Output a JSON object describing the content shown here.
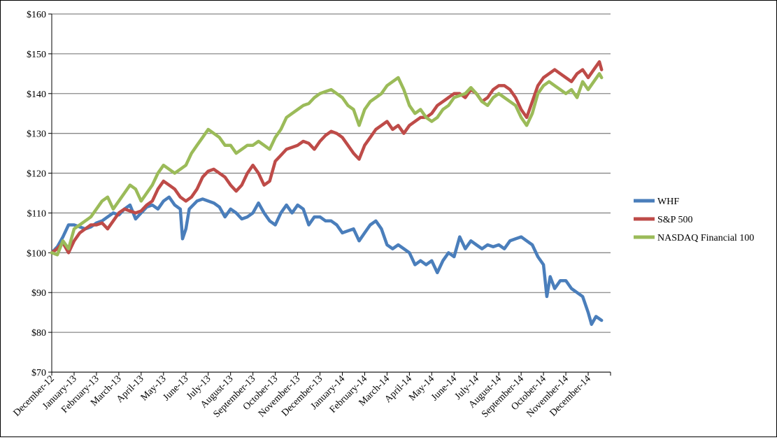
{
  "chart_data": {
    "type": "line",
    "title": "",
    "xlabel": "",
    "ylabel": "",
    "ylim": [
      70,
      160
    ],
    "y_ticks": [
      70,
      80,
      90,
      100,
      110,
      120,
      130,
      140,
      150,
      160
    ],
    "y_tick_labels": [
      "$70",
      "$80",
      "$90",
      "$100",
      "$110",
      "$120",
      "$130",
      "$140",
      "$150",
      "$160"
    ],
    "categories": [
      "December-12",
      "January-13",
      "February-13",
      "March-13",
      "April-13",
      "May-13",
      "June-13",
      "July-13",
      "August-13",
      "September-13",
      "October-13",
      "November-13",
      "December-13",
      "January-14",
      "February-14",
      "March-14",
      "April-14",
      "May-14",
      "June-14",
      "July-14",
      "August-14",
      "September-14",
      "October-14",
      "November-14",
      "December-14"
    ],
    "grid": "horizontal",
    "legend_position": "right",
    "series": [
      {
        "name": "WHF",
        "color": "#4a7ebb",
        "values": [
          [
            0,
            100
          ],
          [
            0.25,
            101.5
          ],
          [
            0.5,
            104
          ],
          [
            0.75,
            107
          ],
          [
            1.0,
            107
          ],
          [
            1.25,
            106.5
          ],
          [
            1.5,
            106
          ],
          [
            1.75,
            106.5
          ],
          [
            2.0,
            107.5
          ],
          [
            2.25,
            108
          ],
          [
            2.5,
            109
          ],
          [
            2.75,
            110
          ],
          [
            3.0,
            109.5
          ],
          [
            3.25,
            111
          ],
          [
            3.5,
            112
          ],
          [
            3.75,
            108.5
          ],
          [
            4.0,
            110
          ],
          [
            4.25,
            111.5
          ],
          [
            4.5,
            112
          ],
          [
            4.75,
            111
          ],
          [
            5.0,
            113
          ],
          [
            5.25,
            114
          ],
          [
            5.5,
            112
          ],
          [
            5.75,
            111
          ],
          [
            5.85,
            103.5
          ],
          [
            6.0,
            106
          ],
          [
            6.15,
            111
          ],
          [
            6.5,
            113
          ],
          [
            6.75,
            113.5
          ],
          [
            7.0,
            113
          ],
          [
            7.25,
            112.5
          ],
          [
            7.5,
            111.5
          ],
          [
            7.75,
            109
          ],
          [
            8.0,
            111
          ],
          [
            8.25,
            110
          ],
          [
            8.5,
            108.5
          ],
          [
            8.75,
            109
          ],
          [
            9.0,
            110
          ],
          [
            9.25,
            112.5
          ],
          [
            9.5,
            110
          ],
          [
            9.75,
            108
          ],
          [
            10.0,
            107
          ],
          [
            10.25,
            110
          ],
          [
            10.5,
            112
          ],
          [
            10.75,
            110
          ],
          [
            11.0,
            112
          ],
          [
            11.25,
            111
          ],
          [
            11.5,
            107
          ],
          [
            11.75,
            109
          ],
          [
            12.0,
            109
          ],
          [
            12.25,
            108
          ],
          [
            12.5,
            108
          ],
          [
            12.75,
            107
          ],
          [
            13.0,
            105
          ],
          [
            13.25,
            105.5
          ],
          [
            13.5,
            106
          ],
          [
            13.75,
            103
          ],
          [
            14.0,
            105
          ],
          [
            14.25,
            107
          ],
          [
            14.5,
            108
          ],
          [
            14.75,
            106
          ],
          [
            15.0,
            102
          ],
          [
            15.25,
            101
          ],
          [
            15.5,
            102
          ],
          [
            15.75,
            101
          ],
          [
            16.0,
            100
          ],
          [
            16.25,
            97
          ],
          [
            16.5,
            98
          ],
          [
            16.75,
            97
          ],
          [
            17.0,
            98
          ],
          [
            17.25,
            95
          ],
          [
            17.5,
            98
          ],
          [
            17.75,
            100
          ],
          [
            18.0,
            99
          ],
          [
            18.25,
            104
          ],
          [
            18.5,
            101
          ],
          [
            18.75,
            103
          ],
          [
            19.0,
            102
          ],
          [
            19.25,
            101
          ],
          [
            19.5,
            102
          ],
          [
            19.75,
            101.5
          ],
          [
            20.0,
            102
          ],
          [
            20.25,
            101
          ],
          [
            20.5,
            103
          ],
          [
            20.75,
            103.5
          ],
          [
            21.0,
            104
          ],
          [
            21.25,
            103
          ],
          [
            21.5,
            102
          ],
          [
            21.75,
            99
          ],
          [
            22.0,
            97
          ],
          [
            22.15,
            89
          ],
          [
            22.3,
            94
          ],
          [
            22.5,
            91
          ],
          [
            22.75,
            93
          ],
          [
            23.0,
            93
          ],
          [
            23.25,
            91
          ],
          [
            23.5,
            90
          ],
          [
            23.75,
            89
          ],
          [
            24.0,
            85
          ],
          [
            24.15,
            82
          ],
          [
            24.35,
            84
          ],
          [
            24.6,
            83
          ]
        ]
      },
      {
        "name": "S&P 500",
        "color": "#be4b48",
        "values": [
          [
            0,
            100
          ],
          [
            0.25,
            101
          ],
          [
            0.5,
            102.5
          ],
          [
            0.75,
            100
          ],
          [
            1.0,
            103
          ],
          [
            1.25,
            105
          ],
          [
            1.5,
            106
          ],
          [
            1.75,
            107
          ],
          [
            2.0,
            107
          ],
          [
            2.25,
            107.5
          ],
          [
            2.5,
            106
          ],
          [
            2.75,
            108
          ],
          [
            3.0,
            110
          ],
          [
            3.25,
            111
          ],
          [
            3.5,
            110.5
          ],
          [
            3.75,
            110
          ],
          [
            4.0,
            110.5
          ],
          [
            4.25,
            112
          ],
          [
            4.5,
            113
          ],
          [
            4.75,
            116
          ],
          [
            5.0,
            118
          ],
          [
            5.25,
            117
          ],
          [
            5.5,
            116
          ],
          [
            5.75,
            114
          ],
          [
            6.0,
            113
          ],
          [
            6.25,
            114
          ],
          [
            6.5,
            116
          ],
          [
            6.75,
            119
          ],
          [
            7.0,
            120.5
          ],
          [
            7.25,
            121
          ],
          [
            7.5,
            120
          ],
          [
            7.75,
            119
          ],
          [
            8.0,
            117
          ],
          [
            8.25,
            115.5
          ],
          [
            8.5,
            117
          ],
          [
            8.75,
            120
          ],
          [
            9.0,
            122
          ],
          [
            9.25,
            120
          ],
          [
            9.5,
            117
          ],
          [
            9.75,
            118
          ],
          [
            10.0,
            123
          ],
          [
            10.25,
            124.5
          ],
          [
            10.5,
            126
          ],
          [
            10.75,
            126.5
          ],
          [
            11.0,
            127
          ],
          [
            11.25,
            128
          ],
          [
            11.5,
            127.5
          ],
          [
            11.75,
            126
          ],
          [
            12.0,
            128
          ],
          [
            12.25,
            129.5
          ],
          [
            12.5,
            130.5
          ],
          [
            12.75,
            130
          ],
          [
            13.0,
            129
          ],
          [
            13.25,
            127
          ],
          [
            13.5,
            125
          ],
          [
            13.75,
            123.5
          ],
          [
            14.0,
            127
          ],
          [
            14.25,
            129
          ],
          [
            14.5,
            131
          ],
          [
            14.75,
            132
          ],
          [
            15.0,
            133
          ],
          [
            15.25,
            131
          ],
          [
            15.5,
            132
          ],
          [
            15.75,
            130
          ],
          [
            16.0,
            132
          ],
          [
            16.25,
            133
          ],
          [
            16.5,
            134
          ],
          [
            16.75,
            134
          ],
          [
            17.0,
            135
          ],
          [
            17.25,
            137
          ],
          [
            17.5,
            138
          ],
          [
            17.75,
            139
          ],
          [
            18.0,
            140
          ],
          [
            18.25,
            140
          ],
          [
            18.5,
            139
          ],
          [
            18.75,
            141
          ],
          [
            19.0,
            140
          ],
          [
            19.25,
            138
          ],
          [
            19.5,
            139
          ],
          [
            19.75,
            141
          ],
          [
            20.0,
            142
          ],
          [
            20.25,
            142
          ],
          [
            20.5,
            141
          ],
          [
            20.75,
            139
          ],
          [
            21.0,
            136
          ],
          [
            21.25,
            134
          ],
          [
            21.5,
            138
          ],
          [
            21.75,
            142
          ],
          [
            22.0,
            144
          ],
          [
            22.25,
            145
          ],
          [
            22.5,
            146
          ],
          [
            22.75,
            145
          ],
          [
            23.0,
            144
          ],
          [
            23.25,
            143
          ],
          [
            23.5,
            145
          ],
          [
            23.75,
            146
          ],
          [
            24.0,
            144
          ],
          [
            24.25,
            146
          ],
          [
            24.5,
            148
          ],
          [
            24.6,
            146
          ]
        ]
      },
      {
        "name": "NASDAQ Financial 100",
        "color": "#9bbb59",
        "values": [
          [
            0,
            100
          ],
          [
            0.25,
            99.5
          ],
          [
            0.5,
            103
          ],
          [
            0.75,
            101
          ],
          [
            1.0,
            106
          ],
          [
            1.25,
            107
          ],
          [
            1.5,
            108
          ],
          [
            1.75,
            109
          ],
          [
            2.0,
            111
          ],
          [
            2.25,
            113
          ],
          [
            2.5,
            114
          ],
          [
            2.75,
            111
          ],
          [
            3.0,
            113
          ],
          [
            3.25,
            115
          ],
          [
            3.5,
            117
          ],
          [
            3.75,
            116
          ],
          [
            4.0,
            113
          ],
          [
            4.25,
            115
          ],
          [
            4.5,
            117
          ],
          [
            4.75,
            120
          ],
          [
            5.0,
            122
          ],
          [
            5.25,
            121
          ],
          [
            5.5,
            120
          ],
          [
            5.75,
            121
          ],
          [
            6.0,
            122
          ],
          [
            6.25,
            125
          ],
          [
            6.5,
            127
          ],
          [
            6.75,
            129
          ],
          [
            7.0,
            131
          ],
          [
            7.25,
            130
          ],
          [
            7.5,
            129
          ],
          [
            7.75,
            127
          ],
          [
            8.0,
            127
          ],
          [
            8.25,
            125
          ],
          [
            8.5,
            126
          ],
          [
            8.75,
            127
          ],
          [
            9.0,
            127
          ],
          [
            9.25,
            128
          ],
          [
            9.5,
            127
          ],
          [
            9.75,
            126
          ],
          [
            10.0,
            129
          ],
          [
            10.25,
            131
          ],
          [
            10.5,
            134
          ],
          [
            10.75,
            135
          ],
          [
            11.0,
            136
          ],
          [
            11.25,
            137
          ],
          [
            11.5,
            137.5
          ],
          [
            11.75,
            139
          ],
          [
            12.0,
            140
          ],
          [
            12.25,
            140.5
          ],
          [
            12.5,
            141
          ],
          [
            12.75,
            140
          ],
          [
            13.0,
            139
          ],
          [
            13.25,
            137
          ],
          [
            13.5,
            136
          ],
          [
            13.75,
            132
          ],
          [
            14.0,
            136
          ],
          [
            14.25,
            138
          ],
          [
            14.5,
            139
          ],
          [
            14.75,
            140
          ],
          [
            15.0,
            142
          ],
          [
            15.25,
            143
          ],
          [
            15.5,
            144
          ],
          [
            15.75,
            141
          ],
          [
            16.0,
            137
          ],
          [
            16.25,
            135
          ],
          [
            16.5,
            136
          ],
          [
            16.75,
            134
          ],
          [
            17.0,
            133
          ],
          [
            17.25,
            134
          ],
          [
            17.5,
            136
          ],
          [
            17.75,
            137
          ],
          [
            18.0,
            139
          ],
          [
            18.25,
            139.5
          ],
          [
            18.5,
            140
          ],
          [
            18.75,
            141.5
          ],
          [
            19.0,
            140
          ],
          [
            19.25,
            138
          ],
          [
            19.5,
            137
          ],
          [
            19.75,
            139
          ],
          [
            20.0,
            140
          ],
          [
            20.25,
            139
          ],
          [
            20.5,
            138
          ],
          [
            20.75,
            137
          ],
          [
            21.0,
            134
          ],
          [
            21.25,
            132
          ],
          [
            21.5,
            135
          ],
          [
            21.75,
            140
          ],
          [
            22.0,
            142
          ],
          [
            22.25,
            143
          ],
          [
            22.5,
            142
          ],
          [
            22.75,
            141
          ],
          [
            23.0,
            140
          ],
          [
            23.25,
            141
          ],
          [
            23.5,
            139
          ],
          [
            23.75,
            143
          ],
          [
            24.0,
            141
          ],
          [
            24.25,
            143
          ],
          [
            24.5,
            145
          ],
          [
            24.6,
            144
          ]
        ]
      }
    ]
  }
}
